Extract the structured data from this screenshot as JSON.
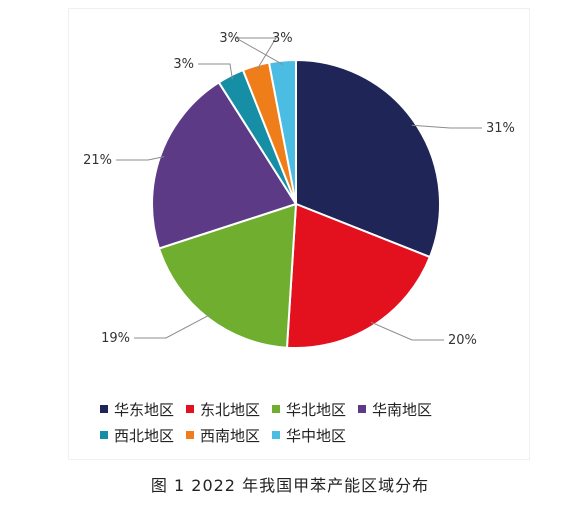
{
  "chart_data": {
    "type": "pie",
    "title": "",
    "slices": [
      {
        "name": "华东地区",
        "value": 31,
        "label": "31%",
        "color": "#1f2657"
      },
      {
        "name": "东北地区",
        "value": 20,
        "label": "20%",
        "color": "#e3101e"
      },
      {
        "name": "华北地区",
        "value": 19,
        "label": "19%",
        "color": "#6fae2e"
      },
      {
        "name": "华南地区",
        "value": 21,
        "label": "21%",
        "color": "#5c3a86"
      },
      {
        "name": "西北地区",
        "value": 3,
        "label": "3%",
        "color": "#168fa6"
      },
      {
        "name": "西南地区",
        "value": 3,
        "label": "3%",
        "color": "#ef7d1a"
      },
      {
        "name": "华中地区",
        "value": 3,
        "label": "3%",
        "color": "#4bbde2"
      }
    ],
    "legend_placement": "bottom"
  },
  "caption": "图 1  2022 年我国甲苯产能区域分布"
}
